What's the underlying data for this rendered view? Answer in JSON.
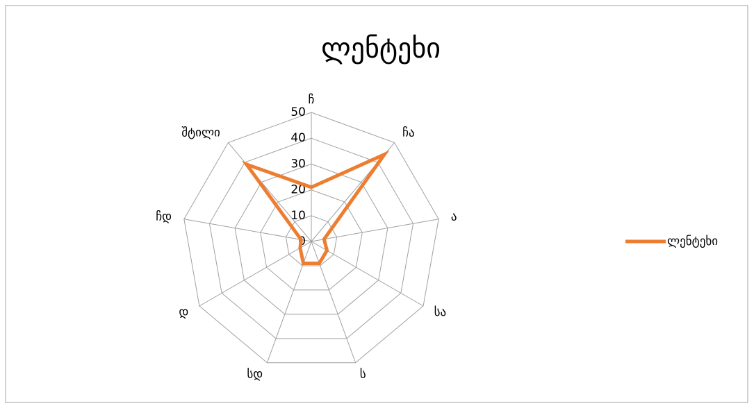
{
  "chart_data": {
    "type": "radar",
    "title": "ლენტეხი",
    "categories": [
      "ჩ",
      "ჩა",
      "ა",
      "სა",
      "ს",
      "სდ",
      "დ",
      "ჩდ",
      "შტილი"
    ],
    "series": [
      {
        "name": "ლენტეხი",
        "color": "#ed7d31",
        "values": [
          21,
          44,
          5,
          7,
          9,
          9,
          5,
          4,
          39
        ]
      }
    ],
    "ylim": [
      0,
      50
    ],
    "yticks": [
      0,
      10,
      20,
      30,
      40,
      50
    ],
    "grid": true,
    "legend": "right"
  }
}
